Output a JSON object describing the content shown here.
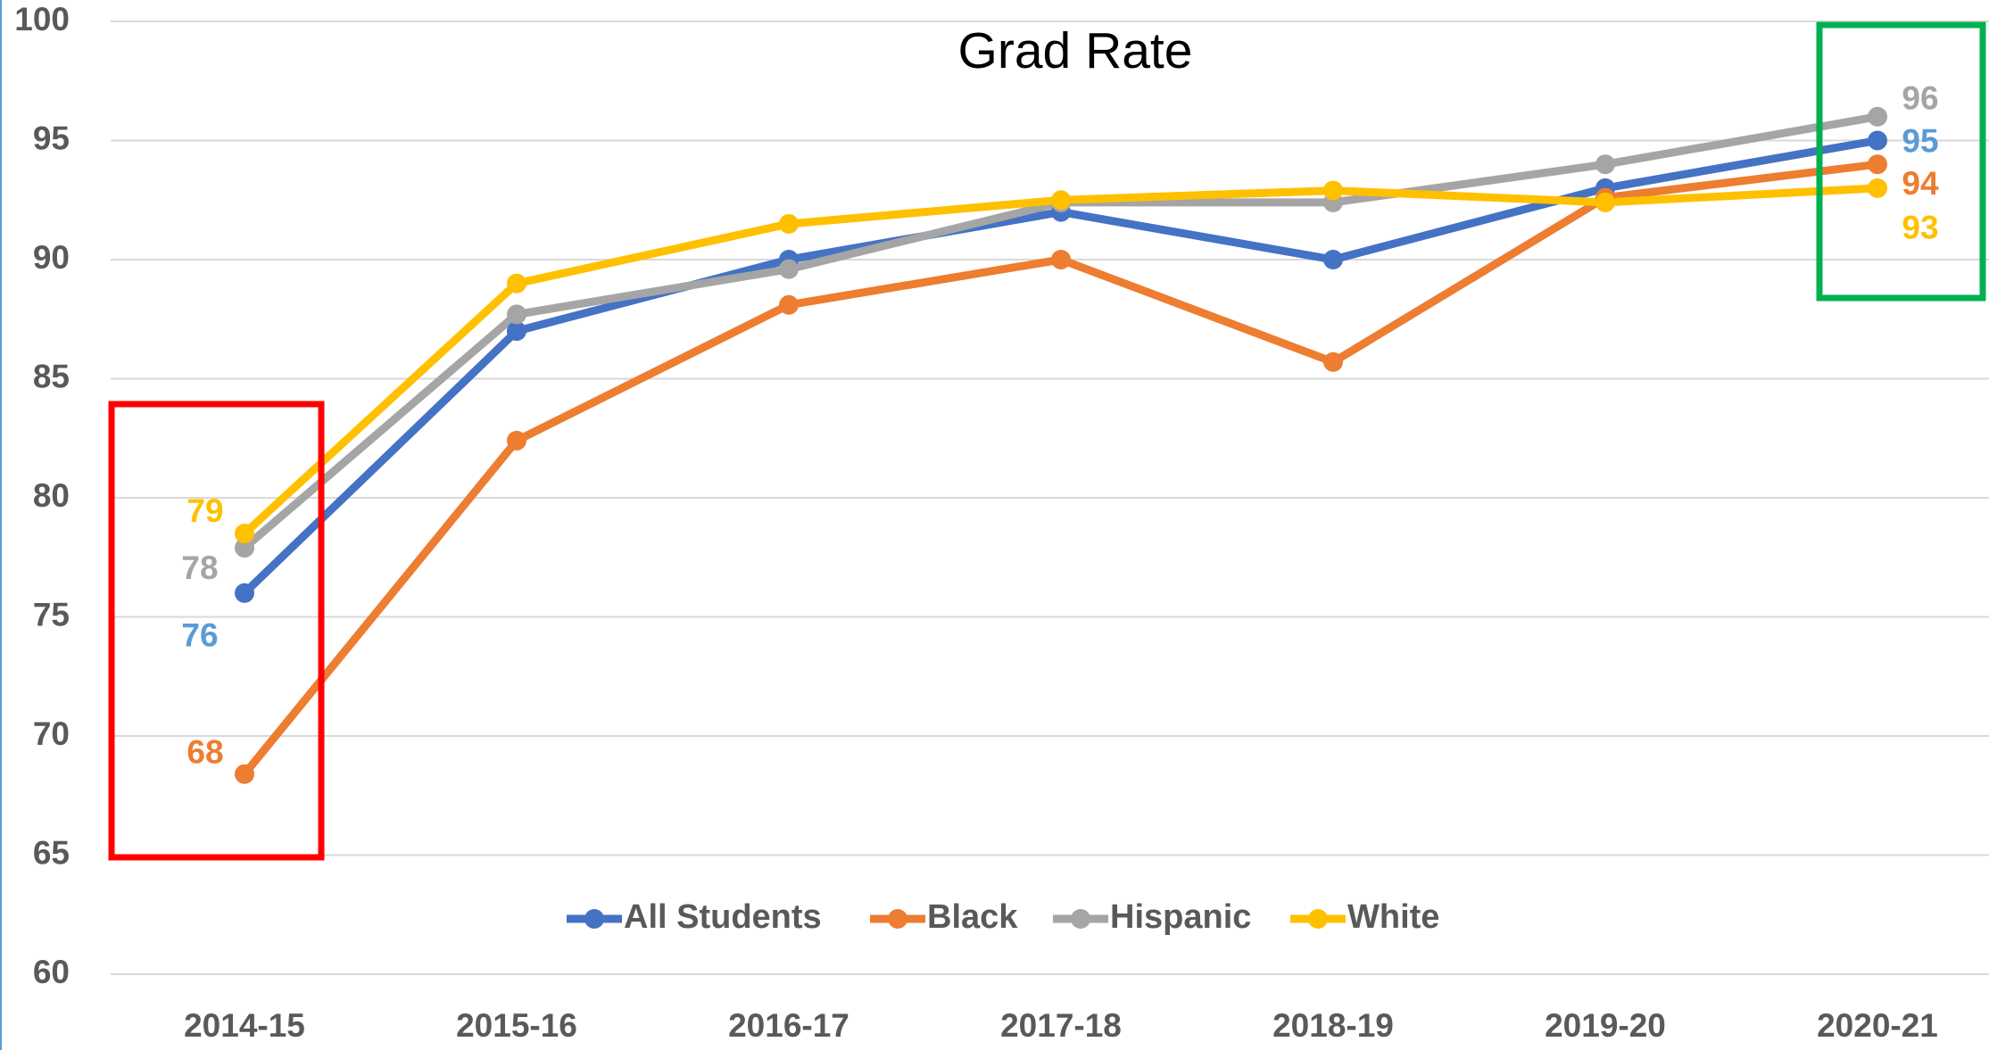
{
  "chart_data": {
    "type": "line",
    "title": "Grad Rate",
    "categories": [
      "2014-15",
      "2015-16",
      "2016-17",
      "2017-18",
      "2018-19",
      "2019-20",
      "2020-21"
    ],
    "series": [
      {
        "name": "All Students",
        "color": "#4472c4",
        "label_color": "#5b9bd5",
        "values": [
          76.0,
          87.0,
          90.0,
          92.0,
          90.0,
          93.0,
          95.0
        ],
        "value_labels": [
          "76",
          null,
          null,
          null,
          null,
          null,
          "95"
        ]
      },
      {
        "name": "Black",
        "color": "#ed7d31",
        "label_color": "#ed7d31",
        "values": [
          68.4,
          82.4,
          88.1,
          90.0,
          85.7,
          92.6,
          94.0
        ],
        "value_labels": [
          "68",
          null,
          null,
          null,
          null,
          null,
          "94"
        ]
      },
      {
        "name": "Hispanic",
        "color": "#a5a5a5",
        "label_color": "#a5a5a5",
        "values": [
          77.9,
          87.7,
          89.6,
          92.4,
          92.4,
          94.0,
          96.0
        ],
        "value_labels": [
          "78",
          null,
          null,
          null,
          null,
          null,
          "96"
        ]
      },
      {
        "name": "White",
        "color": "#ffc000",
        "label_color": "#ffc000",
        "values": [
          78.5,
          89.0,
          91.5,
          92.5,
          92.9,
          92.4,
          93.0
        ],
        "value_labels": [
          "79",
          null,
          null,
          null,
          null,
          null,
          "93"
        ]
      }
    ],
    "ylim": [
      60,
      100
    ],
    "yticks": [
      60,
      65,
      70,
      75,
      80,
      85,
      90,
      95,
      100
    ],
    "grid": true,
    "legend": "bottom"
  }
}
